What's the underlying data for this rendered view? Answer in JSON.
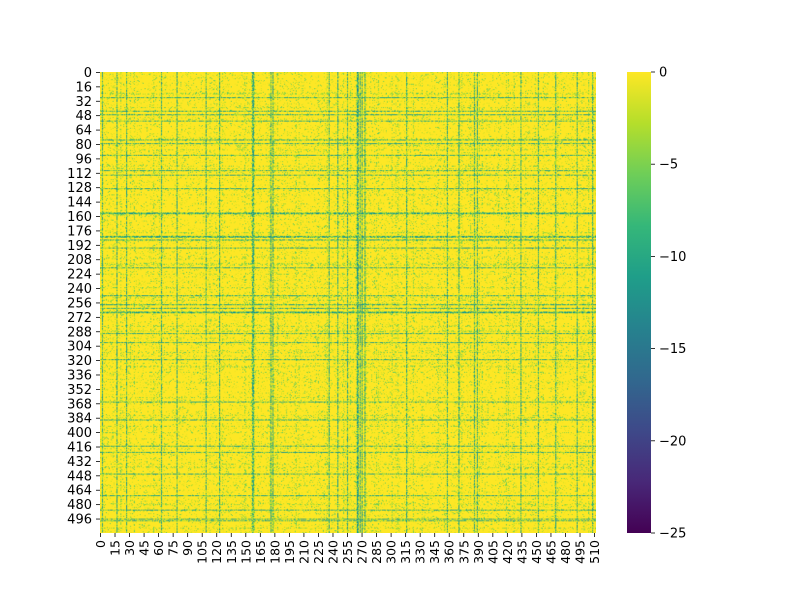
{
  "chart_data": {
    "type": "heatmap",
    "title": "",
    "xlabel": "",
    "ylabel": "",
    "rows": 512,
    "cols": 512,
    "colormap": "viridis",
    "value_range": [
      -25,
      0
    ],
    "xlim": [
      0,
      512
    ],
    "ylim": [
      0,
      512
    ],
    "x_tick_values": [
      0,
      15,
      30,
      45,
      60,
      75,
      90,
      105,
      120,
      135,
      150,
      165,
      180,
      195,
      210,
      225,
      240,
      255,
      270,
      285,
      300,
      315,
      330,
      345,
      360,
      375,
      390,
      405,
      420,
      435,
      450,
      465,
      480,
      495,
      510
    ],
    "x_tick_labels": [
      "0",
      "15",
      "30",
      "45",
      "60",
      "75",
      "90",
      "105",
      "120",
      "135",
      "150",
      "165",
      "180",
      "195",
      "210",
      "225",
      "240",
      "255",
      "270",
      "285",
      "300",
      "315",
      "330",
      "345",
      "360",
      "375",
      "390",
      "405",
      "420",
      "435",
      "450",
      "465",
      "480",
      "495",
      "510"
    ],
    "y_tick_values": [
      0,
      16,
      32,
      48,
      64,
      80,
      96,
      112,
      128,
      144,
      160,
      176,
      192,
      208,
      224,
      240,
      256,
      272,
      288,
      304,
      320,
      336,
      352,
      368,
      384,
      400,
      416,
      432,
      448,
      464,
      480,
      496
    ],
    "y_tick_labels": [
      "0",
      "16",
      "32",
      "48",
      "64",
      "80",
      "96",
      "112",
      "128",
      "144",
      "160",
      "176",
      "192",
      "208",
      "224",
      "240",
      "256",
      "272",
      "288",
      "304",
      "320",
      "336",
      "352",
      "368",
      "384",
      "400",
      "416",
      "432",
      "448",
      "464",
      "480",
      "496"
    ],
    "colorbar": {
      "tick_values": [
        0,
        -5,
        -10,
        -15,
        -20,
        -25
      ],
      "tick_labels": [
        "0",
        "−5",
        "−10",
        "−15",
        "−20",
        "−25"
      ]
    },
    "typical_value": 0,
    "strong_columns": [
      2,
      17,
      27,
      63,
      79,
      109,
      123,
      157,
      158,
      176,
      178,
      236,
      245,
      255,
      265,
      266,
      268,
      270,
      273,
      316,
      358,
      370,
      386,
      389,
      434,
      452,
      470,
      492,
      508
    ],
    "strong_rows": [
      28,
      43,
      47,
      54,
      75,
      79,
      92,
      109,
      114,
      129,
      156,
      157,
      182,
      183,
      186,
      195,
      217,
      248,
      258,
      262,
      266,
      267,
      290,
      300,
      319,
      366,
      386,
      415,
      422,
      446,
      470,
      486,
      496,
      498
    ],
    "strong_line_value": -11,
    "grid": false,
    "legend": "colorbar-right"
  },
  "colors": {
    "viridis_stops": [
      "#440154",
      "#482878",
      "#3e4989",
      "#31688e",
      "#26828e",
      "#1f9e89",
      "#35b779",
      "#6ece58",
      "#b5de2b",
      "#fde725"
    ]
  }
}
